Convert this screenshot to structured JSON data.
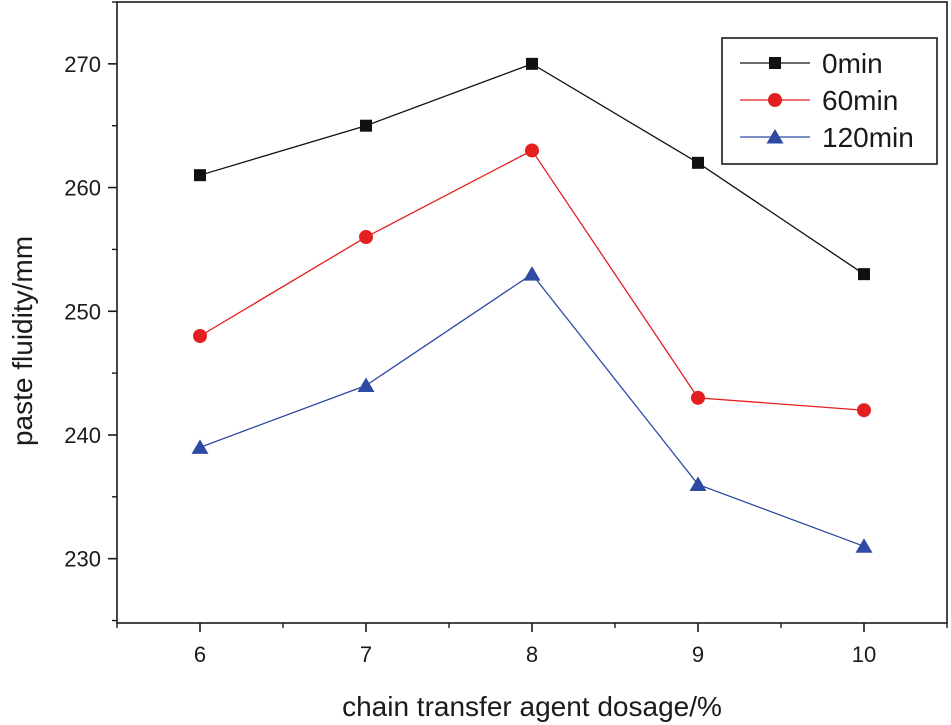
{
  "chart_data": {
    "type": "line",
    "title": "",
    "xlabel": "chain transfer agent dosage/%",
    "ylabel": "paste fluidity/mm",
    "x": [
      6,
      7,
      8,
      9,
      10
    ],
    "x_tick_labels": [
      "6",
      "7",
      "8",
      "9",
      "10"
    ],
    "xlim": [
      5.5,
      10.5
    ],
    "y_ticks": [
      230,
      240,
      250,
      260,
      270
    ],
    "y_tick_labels": [
      "230",
      "240",
      "250",
      "260",
      "270"
    ],
    "ylim": [
      224.8,
      275
    ],
    "grid": false,
    "legend_position": "top-right",
    "series": [
      {
        "name": "0min",
        "values": [
          261,
          265,
          270,
          262,
          253
        ],
        "color": "#111111",
        "marker": "square"
      },
      {
        "name": "60min",
        "values": [
          248,
          256,
          263,
          243,
          242
        ],
        "color": "#e41f1f",
        "marker": "circle"
      },
      {
        "name": "120min",
        "values": [
          239,
          244,
          253,
          236,
          231
        ],
        "color": "#2f4aa3",
        "marker": "triangle"
      }
    ]
  }
}
